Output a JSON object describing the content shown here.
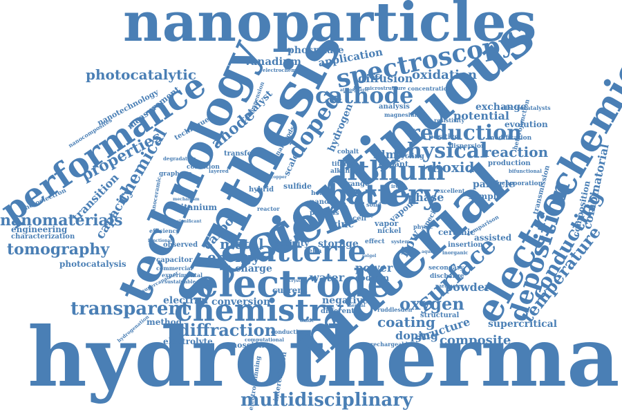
{
  "color": "#4a7fb5",
  "words": [
    "hydrothermal",
    "nanoparticles",
    "synthesis",
    "continuous",
    "technology",
    "material",
    "science",
    "electrochemical",
    "electrode",
    "performance",
    "chemistry",
    "multidisciplinary",
    "spectroscopy",
    "lithium",
    "battery",
    "batterie",
    "deposition",
    "cathode",
    "reduction",
    "surface",
    "physical",
    "doped",
    "temperature",
    "transparent",
    "conducting",
    "diffraction",
    "properties",
    "nanomaterials",
    "tomography",
    "photocatalytic",
    "combinatorial",
    "oxygen",
    "coating",
    "energy",
    "metal",
    "composite",
    "chemical",
    "reaction",
    "dioxide",
    "anode",
    "carbon",
    "capacity",
    "transition",
    "conversion",
    "structure",
    "doping",
    "supercritical",
    "powder",
    "oxidation",
    "diffusion",
    "application",
    "vanadium",
    "phosphate",
    "exchange",
    "potential",
    "measurement",
    "nanotechnology",
    "photocatalysis",
    "engineering",
    "characterization",
    "electrolyte",
    "electron",
    "method",
    "nanoscience",
    "intercalation",
    "electrospinning",
    "hydrogen",
    "catalyst",
    "phase",
    "particle",
    "sample",
    "water",
    "power",
    "negative",
    "charge",
    "film",
    "flow",
    "zinc",
    "storage",
    "activity",
    "current",
    "evolution",
    "assisted",
    "production",
    "ceramic",
    "insertion",
    "scale",
    "sodium",
    "titanium",
    "sulfide",
    "vapour",
    "vapor",
    "nickel",
    "cobalt",
    "dopant",
    "cycling",
    "positive",
    "dispersion",
    "modification",
    "technique",
    "observed",
    "capacitor",
    "graphene",
    "condition",
    "efficiency",
    "commercial",
    "nanorods",
    "transfer",
    "nano",
    "heat",
    "reactor",
    "hybrid",
    "range",
    "titania",
    "alkaline",
    "resistivity",
    "incorporation",
    "heterojunction",
    "transmission",
    "composition",
    "electrocatalysts",
    "bifunctional",
    "rechargeable",
    "computational",
    "different",
    "ruddlesden",
    "secondary",
    "discharge",
    "comparison",
    "concentration",
    "analysis",
    "magnesium",
    "microstructure",
    "nanocomposites",
    "photoelectron",
    "suspension",
    "experimental",
    "fabrication",
    "sustainable",
    "supercapacitor",
    "electrochemistry",
    "conductive",
    "structural",
    "density",
    "excellent",
    "inorganic",
    "mechanism",
    "degradation",
    "layered",
    "direct",
    "alloy",
    "delta",
    "solid",
    "effect",
    "system",
    "parameter",
    "physic",
    "specific",
    "cell",
    "nanoceramic",
    "hydrogenation",
    "atmospheric",
    "significant",
    "process",
    "functional",
    "iron",
    "copper",
    "crystal",
    "thermal",
    "sol",
    "gel",
    "oxide",
    "aqueous"
  ]
}
